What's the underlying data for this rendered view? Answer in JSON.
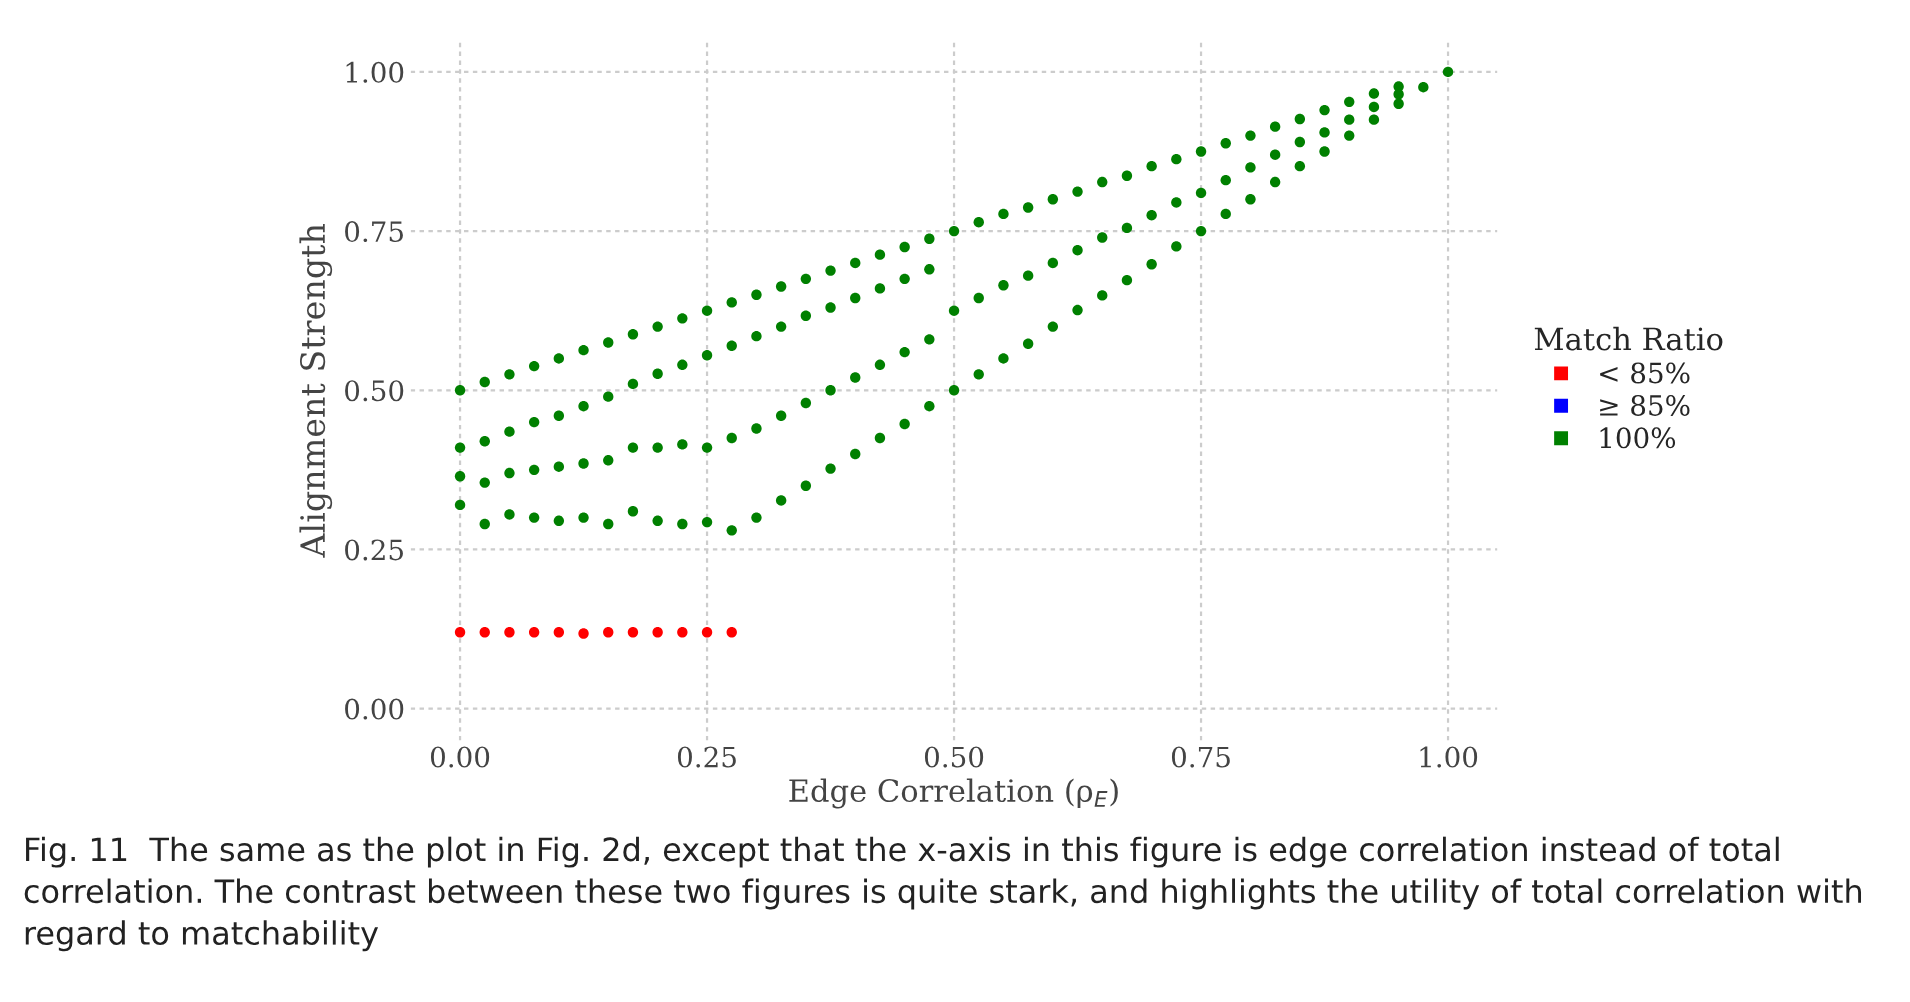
{
  "chart_data": {
    "type": "scatter",
    "xlabel": "Edge Correlation (ρ$_{E}$)",
    "ylabel": "Alignment Strength",
    "legend_title": "Match Ratio",
    "xlim": [
      -0.05,
      1.05
    ],
    "ylim": [
      -0.05,
      1.05
    ],
    "xticks": [
      {
        "value": 0,
        "label": "0.00"
      },
      {
        "value": 0.25,
        "label": "0.25"
      },
      {
        "value": 0.5,
        "label": "0.50"
      },
      {
        "value": 0.75,
        "label": "0.75"
      },
      {
        "value": 1,
        "label": "1.00"
      }
    ],
    "yticks": [
      {
        "value": 0,
        "label": "0.00"
      },
      {
        "value": 0.25,
        "label": "0.25"
      },
      {
        "value": 0.5,
        "label": "0.50"
      },
      {
        "value": 0.75,
        "label": "0.75"
      },
      {
        "value": 1,
        "label": "1.00"
      }
    ],
    "grid": true,
    "legend": "right",
    "marker": "circle",
    "series": [
      {
        "name": "< 85%",
        "color": "#ff0000",
        "x": [
          0,
          0.025,
          0.05,
          0.075,
          0.1,
          0.125,
          0.15,
          0.175,
          0.2,
          0.225,
          0.25,
          0.275
        ],
        "values": [
          0.12,
          0.12,
          0.12,
          0.12,
          0.12,
          0.118,
          0.12,
          0.12,
          0.12,
          0.12,
          0.12,
          0.12
        ]
      },
      {
        "name": "≥ 85%",
        "color": "#0000ff"
      },
      {
        "name": "100%",
        "color": "#008000",
        "x": [
          0,
          0,
          0,
          0,
          0.025,
          0.025,
          0.025,
          0.025,
          0.05,
          0.05,
          0.05,
          0.05,
          0.075,
          0.075,
          0.075,
          0.075,
          0.1,
          0.1,
          0.1,
          0.1,
          0.125,
          0.125,
          0.125,
          0.125,
          0.15,
          0.15,
          0.15,
          0.15,
          0.175,
          0.175,
          0.175,
          0.175,
          0.2,
          0.2,
          0.2,
          0.2,
          0.225,
          0.225,
          0.225,
          0.225,
          0.25,
          0.25,
          0.25,
          0.25,
          0.275,
          0.275,
          0.275,
          0.275,
          0.3,
          0.3,
          0.3,
          0.3,
          0.325,
          0.325,
          0.325,
          0.325,
          0.35,
          0.35,
          0.35,
          0.35,
          0.375,
          0.375,
          0.375,
          0.375,
          0.4,
          0.4,
          0.4,
          0.4,
          0.425,
          0.425,
          0.425,
          0.425,
          0.45,
          0.45,
          0.45,
          0.45,
          0.475,
          0.475,
          0.475,
          0.475,
          0.5,
          0.5,
          0.5,
          0.525,
          0.525,
          0.525,
          0.55,
          0.55,
          0.55,
          0.575,
          0.575,
          0.575,
          0.6,
          0.6,
          0.6,
          0.625,
          0.625,
          0.625,
          0.65,
          0.65,
          0.65,
          0.675,
          0.675,
          0.675,
          0.7,
          0.7,
          0.7,
          0.725,
          0.725,
          0.725,
          0.75,
          0.75,
          0.75,
          0.775,
          0.775,
          0.775,
          0.8,
          0.8,
          0.8,
          0.825,
          0.825,
          0.825,
          0.85,
          0.85,
          0.85,
          0.875,
          0.875,
          0.875,
          0.9,
          0.9,
          0.9,
          0.925,
          0.925,
          0.925,
          0.95,
          0.95,
          0.95,
          0.975,
          1.0
        ],
        "values": [
          0.5,
          0.41,
          0.365,
          0.32,
          0.513,
          0.42,
          0.355,
          0.29,
          0.525,
          0.435,
          0.37,
          0.305,
          0.538,
          0.45,
          0.375,
          0.3,
          0.55,
          0.46,
          0.38,
          0.295,
          0.563,
          0.475,
          0.385,
          0.3,
          0.575,
          0.49,
          0.39,
          0.29,
          0.588,
          0.51,
          0.41,
          0.31,
          0.6,
          0.526,
          0.41,
          0.295,
          0.613,
          0.54,
          0.415,
          0.29,
          0.625,
          0.555,
          0.41,
          0.293,
          0.638,
          0.57,
          0.425,
          0.28,
          0.65,
          0.585,
          0.44,
          0.3,
          0.663,
          0.6,
          0.46,
          0.327,
          0.675,
          0.617,
          0.48,
          0.35,
          0.688,
          0.63,
          0.5,
          0.377,
          0.7,
          0.645,
          0.52,
          0.4,
          0.713,
          0.66,
          0.54,
          0.425,
          0.725,
          0.675,
          0.56,
          0.447,
          0.738,
          0.69,
          0.58,
          0.475,
          0.75,
          0.625,
          0.5,
          0.764,
          0.645,
          0.525,
          0.777,
          0.665,
          0.55,
          0.787,
          0.68,
          0.573,
          0.8,
          0.7,
          0.6,
          0.812,
          0.72,
          0.626,
          0.827,
          0.74,
          0.649,
          0.837,
          0.755,
          0.673,
          0.852,
          0.775,
          0.698,
          0.863,
          0.795,
          0.726,
          0.875,
          0.81,
          0.75,
          0.888,
          0.83,
          0.777,
          0.9,
          0.85,
          0.8,
          0.914,
          0.87,
          0.827,
          0.926,
          0.89,
          0.852,
          0.94,
          0.905,
          0.875,
          0.953,
          0.925,
          0.9,
          0.966,
          0.945,
          0.925,
          0.977,
          0.965,
          0.95,
          0.976,
          1.0
        ]
      }
    ],
    "annotations": [
      "Fig. 11  The same as the plot in Fig. 2d, except that the x-axis in this figure is edge correlation instead of total correlation. The contrast between these two figures is quite stark, and highlights the utility of total correlation with regard to matchability"
    ]
  }
}
